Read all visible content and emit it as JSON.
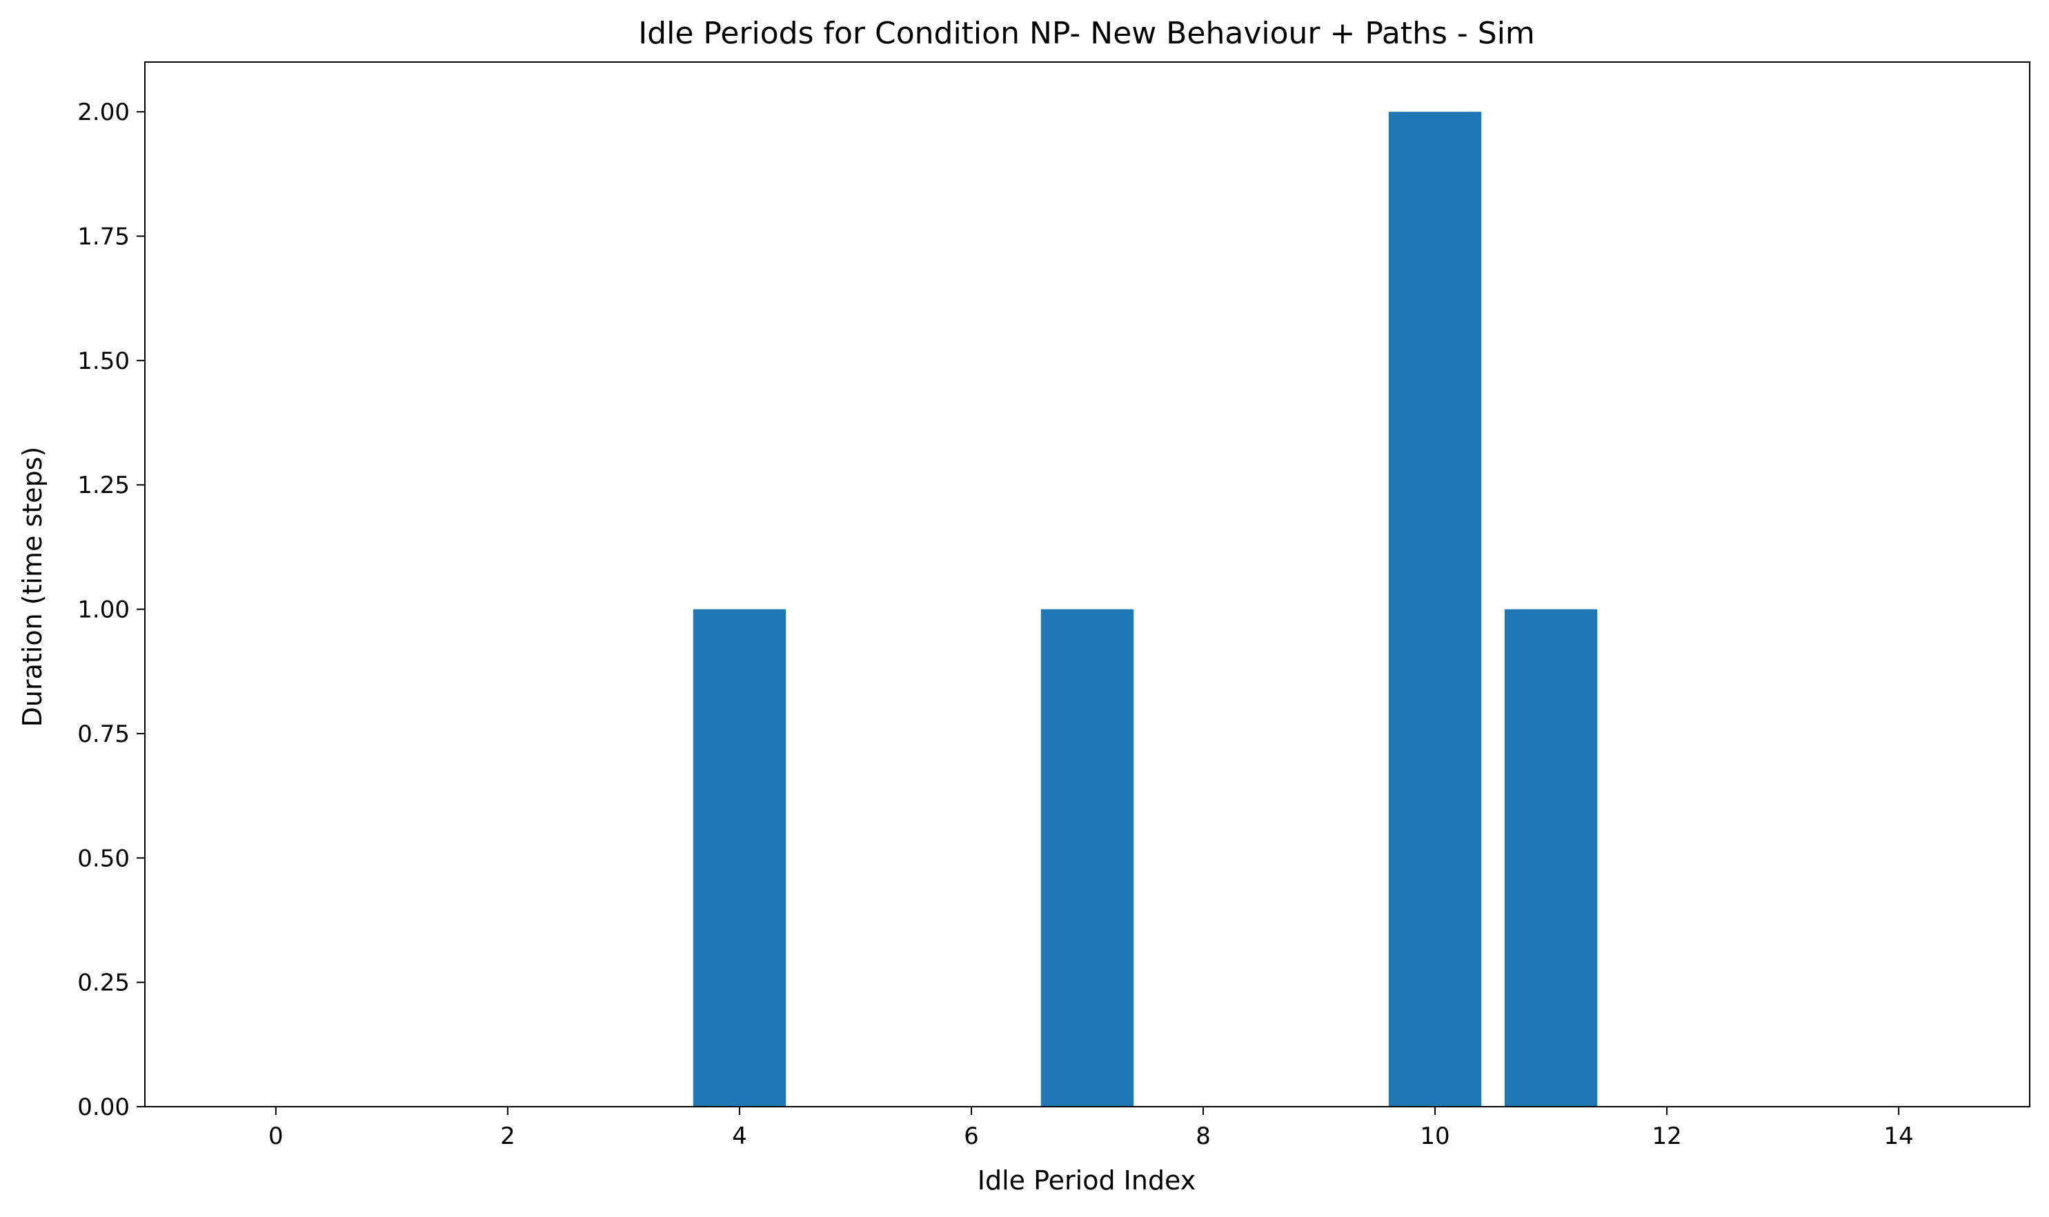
{
  "chart_data": {
    "type": "bar",
    "title": "Idle Periods for Condition NP- New Behaviour + Paths - Sim",
    "xlabel": "Idle Period Index",
    "ylabel": "Duration (time steps)",
    "x": [
      0,
      1,
      2,
      3,
      4,
      5,
      6,
      7,
      8,
      9,
      10,
      11,
      12,
      13,
      14
    ],
    "values": [
      0,
      0,
      0,
      0,
      1,
      0,
      0,
      1,
      0,
      0,
      2,
      1,
      0,
      0,
      0
    ],
    "bar_width": 0.8,
    "xlim": [
      -1.13,
      15.13
    ],
    "ylim": [
      0,
      2.1
    ],
    "xticks": [
      0,
      2,
      4,
      6,
      8,
      10,
      12,
      14
    ],
    "yticks": [
      0.0,
      0.25,
      0.5,
      0.75,
      1.0,
      1.25,
      1.5,
      1.75,
      2.0
    ],
    "ytick_labels": [
      "0.00",
      "0.25",
      "0.50",
      "0.75",
      "1.00",
      "1.25",
      "1.50",
      "1.75",
      "2.00"
    ],
    "xtick_labels": [
      "0",
      "2",
      "4",
      "6",
      "8",
      "10",
      "12",
      "14"
    ],
    "bar_color": "#1f77b4",
    "grid": false,
    "legend": "none"
  }
}
